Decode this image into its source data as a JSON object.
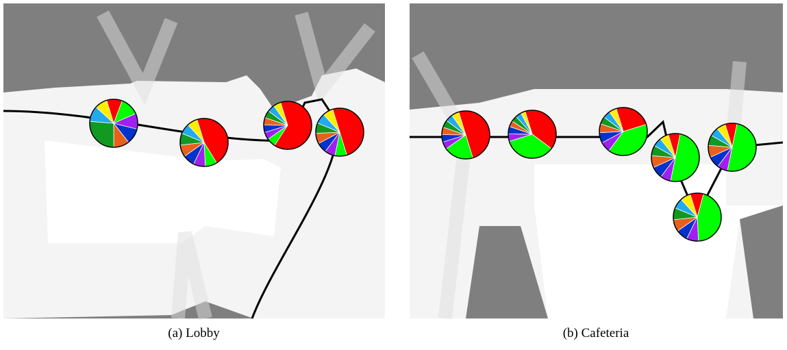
{
  "slice_colors": [
    "#ff0000",
    "#00ff00",
    "#a020f0",
    "#0033cc",
    "#e8601c",
    "#119922",
    "#22aaee",
    "#ffee00"
  ],
  "panels": [
    {
      "caption": "(a) Lobby",
      "pies": [
        {
          "values": [
            10,
            12,
            10,
            10,
            10,
            25,
            10,
            8
          ]
        },
        {
          "values": [
            46,
            8,
            8,
            8,
            8,
            8,
            7,
            7
          ]
        },
        {
          "values": [
            64,
            6,
            5,
            5,
            5,
            5,
            5,
            5
          ]
        },
        {
          "values": [
            50,
            8,
            7,
            7,
            7,
            7,
            7,
            7
          ]
        }
      ]
    },
    {
      "caption": "(b) Cafeteria",
      "pies": [
        {
          "values": [
            50,
            20,
            5,
            5,
            5,
            5,
            5,
            5
          ]
        },
        {
          "values": [
            40,
            35,
            5,
            5,
            4,
            4,
            4,
            3
          ]
        },
        {
          "values": [
            25,
            40,
            7,
            7,
            6,
            5,
            5,
            5
          ]
        },
        {
          "values": [
            8,
            50,
            7,
            8,
            8,
            7,
            6,
            6
          ]
        },
        {
          "values": [
            8,
            50,
            7,
            8,
            8,
            7,
            6,
            6
          ]
        },
        {
          "values": [
            9,
            45,
            8,
            8,
            8,
            8,
            7,
            7
          ]
        }
      ]
    }
  ]
}
